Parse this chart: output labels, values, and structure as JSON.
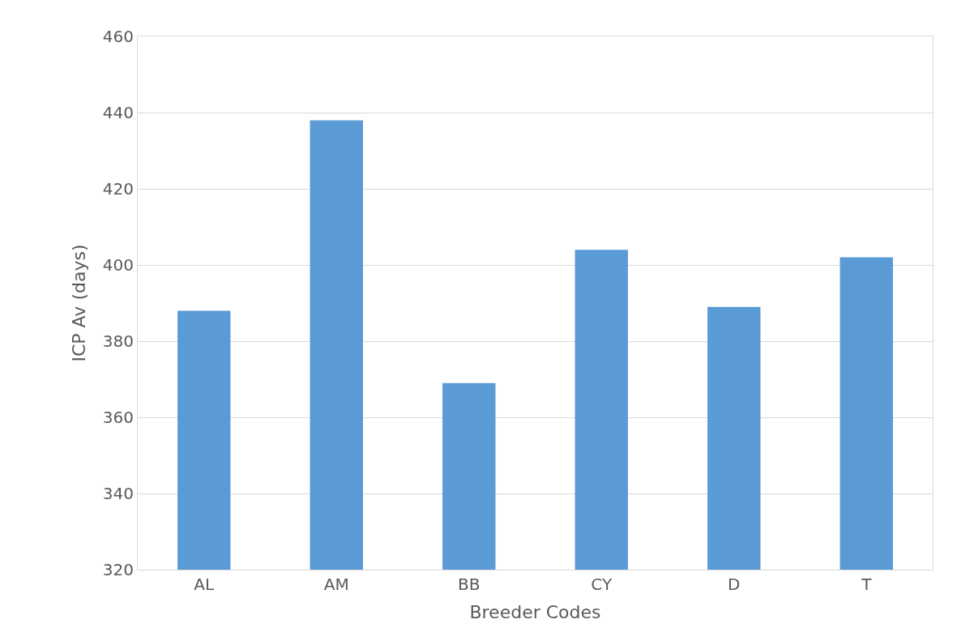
{
  "chart_data": {
    "type": "bar",
    "xlabel": "Breeder Codes",
    "ylabel": "ICP Av (days)",
    "categories": [
      "AL",
      "AM",
      "BB",
      "CY",
      "D",
      "T"
    ],
    "values": [
      388,
      438,
      369,
      404,
      389,
      402
    ],
    "color": "#5b9bd5",
    "ylim": [
      320,
      460
    ],
    "yticks": [
      320,
      340,
      360,
      380,
      400,
      420,
      440,
      460
    ],
    "grid": "y",
    "legend": false
  }
}
